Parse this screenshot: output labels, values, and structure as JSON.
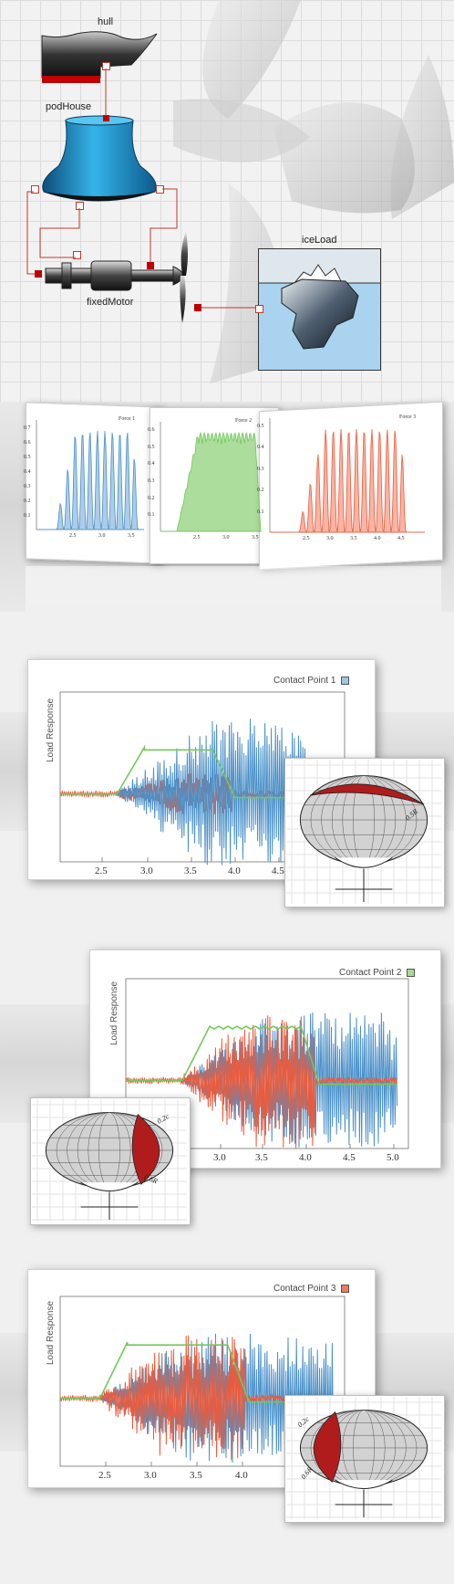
{
  "diagram": {
    "labels": {
      "hull": "hull",
      "podHouse": "podHouse",
      "fixedMotor": "fixedMotor",
      "iceLoad": "iceLoad"
    }
  },
  "force_charts": [
    {
      "title": "Force 1",
      "yticks": [
        "0.7",
        "0.6",
        "0.5",
        "0.4",
        "0.3",
        "0.2",
        "0.1"
      ],
      "xticks": [
        "2.5",
        "3.0",
        "3.5"
      ],
      "color": "#4a90c8"
    },
    {
      "title": "Force 2",
      "yticks": [
        "0.6",
        "0.5",
        "0.4",
        "0.3",
        "0.2",
        "0.1"
      ],
      "xticks": [
        "2.5",
        "3.0",
        "3.5"
      ],
      "color": "#74c75c"
    },
    {
      "title": "Force 3",
      "yticks": [
        "0.5",
        "0.4",
        "0.3",
        "0.2",
        "0.1"
      ],
      "xticks": [
        "2.5",
        "3.0",
        "3.5",
        "4.0",
        "4.5"
      ],
      "color": "#ee5a3a"
    }
  ],
  "response_charts": [
    {
      "legend": "Contact Point 1",
      "legend_color": "#4a90c8",
      "ylabel": "Load Response",
      "xticks": [
        "2.5",
        "3.0",
        "3.5",
        "4.0",
        "4.5"
      ],
      "inset_labels": [
        "0.5R"
      ]
    },
    {
      "legend": "Contact Point 2",
      "legend_color": "#74c75c",
      "ylabel": "Load Response",
      "xticks": [
        "3.0",
        "3.5",
        "4.0",
        "4.5",
        "5.0"
      ],
      "inset_labels": [
        "0.2c",
        "0.6R"
      ]
    },
    {
      "legend": "Contact Point 3",
      "legend_color": "#ee5a3a",
      "ylabel": "Load Response",
      "xticks": [
        "2.5",
        "3.0",
        "3.5",
        "4.0"
      ],
      "inset_labels": [
        "0.2c",
        "0.6R"
      ]
    }
  ],
  "colors": {
    "blue": "#4a90c8",
    "green": "#74c75c",
    "red": "#ee5a3a",
    "connector": "#c0392b"
  }
}
